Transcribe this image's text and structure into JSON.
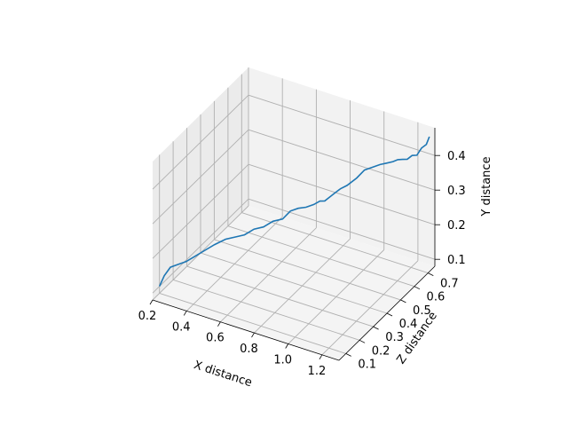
{
  "chart_data": {
    "type": "line",
    "projection": "3d",
    "title": "",
    "grid": true,
    "xlabel": "X distance",
    "ylabel": "Y distance",
    "zlabel": "Z distance",
    "xlim": [
      0.2,
      1.3
    ],
    "ylim": [
      0.08,
      0.48
    ],
    "zlim": [
      0.05,
      0.75
    ],
    "x_ticks": [
      "0.2",
      "0.4",
      "0.6",
      "0.8",
      "1.0",
      "1.2"
    ],
    "y_ticks": [
      "0.1",
      "0.2",
      "0.3",
      "0.4"
    ],
    "z_ticks": [
      "0.1",
      "0.2",
      "0.3",
      "0.4",
      "0.5",
      "0.6",
      "0.7"
    ],
    "colors": {
      "series": "#1f77b4",
      "pane": "#f2f2f2",
      "grid": "#b0b0b0"
    },
    "series": [
      {
        "x": [
          0.2,
          0.22,
          0.24,
          0.27,
          0.3,
          0.34,
          0.38,
          0.42,
          0.46,
          0.5,
          0.54,
          0.58,
          0.62,
          0.66,
          0.7,
          0.73,
          0.76,
          0.79,
          0.82,
          0.84,
          0.86,
          0.88,
          0.9,
          0.93,
          0.96,
          1.0,
          1.03,
          1.06,
          1.09,
          1.12,
          1.15,
          1.17,
          1.19,
          1.21,
          1.23,
          1.25,
          1.27,
          1.29,
          1.3
        ],
        "y": [
          0.1,
          0.13,
          0.15,
          0.155,
          0.16,
          0.175,
          0.19,
          0.205,
          0.215,
          0.22,
          0.225,
          0.24,
          0.245,
          0.26,
          0.265,
          0.285,
          0.29,
          0.29,
          0.295,
          0.3,
          0.3,
          0.31,
          0.32,
          0.335,
          0.345,
          0.365,
          0.385,
          0.39,
          0.395,
          0.4,
          0.405,
          0.41,
          0.41,
          0.41,
          0.42,
          0.42,
          0.44,
          0.45,
          0.47
        ],
        "z": [
          0.1,
          0.11,
          0.13,
          0.15,
          0.17,
          0.19,
          0.21,
          0.23,
          0.26,
          0.28,
          0.3,
          0.32,
          0.34,
          0.36,
          0.38,
          0.4,
          0.42,
          0.44,
          0.46,
          0.48,
          0.49,
          0.5,
          0.51,
          0.52,
          0.53,
          0.55,
          0.57,
          0.59,
          0.61,
          0.62,
          0.63,
          0.64,
          0.65,
          0.66,
          0.67,
          0.68,
          0.69,
          0.7,
          0.71
        ]
      }
    ]
  }
}
